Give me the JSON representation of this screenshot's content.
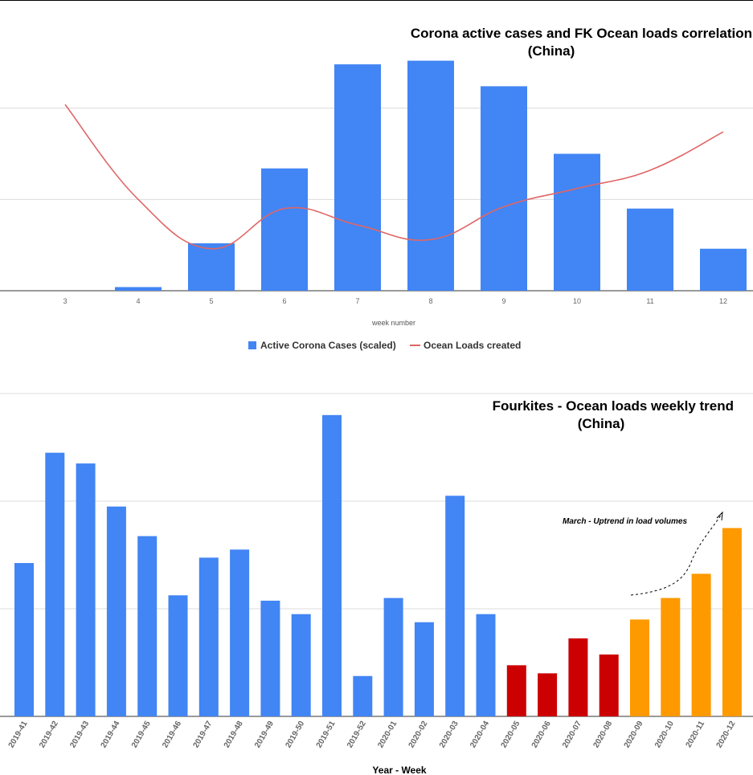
{
  "chart_data": [
    {
      "type": "bar",
      "title": "Corona active cases and FK Ocean loads correlation",
      "subtitle": "(China)",
      "xlabel": "week number",
      "categories": [
        "3",
        "4",
        "5",
        "6",
        "7",
        "8",
        "9",
        "10",
        "11",
        "12"
      ],
      "series": [
        {
          "name": "Active Corona Cases (scaled)",
          "type": "bar",
          "color": "#4285f4",
          "values": [
            0,
            2,
            26,
            67,
            124,
            126,
            112,
            75,
            45,
            23
          ]
        },
        {
          "name": "Ocean Loads created",
          "type": "line",
          "color": "#e06666",
          "values": [
            102,
            50,
            23,
            45,
            36,
            28,
            46,
            56,
            66,
            87
          ]
        }
      ],
      "ylim": [
        0,
        150
      ],
      "grid": true,
      "legend": "bottom"
    },
    {
      "type": "bar",
      "title": "Fourkites - Ocean loads weekly trend",
      "subtitle": "(China)",
      "xlabel": "Year - Week",
      "categories": [
        "2019-41",
        "2019-42",
        "2019-43",
        "2019-44",
        "2019-45",
        "2019-46",
        "2019-47",
        "2019-48",
        "2019-49",
        "2019-50",
        "2019-51",
        "2019-52",
        "2020-01",
        "2020-02",
        "2020-03",
        "2020-04",
        "2020-05",
        "2020-06",
        "2020-07",
        "2020-08",
        "2020-09",
        "2020-10",
        "2020-11",
        "2020-12"
      ],
      "values": [
        57,
        98,
        94,
        78,
        67,
        45,
        59,
        62,
        43,
        38,
        112,
        15,
        44,
        35,
        82,
        38,
        19,
        16,
        29,
        23,
        36,
        44,
        53,
        70
      ],
      "colors": [
        "#4285f4",
        "#4285f4",
        "#4285f4",
        "#4285f4",
        "#4285f4",
        "#4285f4",
        "#4285f4",
        "#4285f4",
        "#4285f4",
        "#4285f4",
        "#4285f4",
        "#4285f4",
        "#4285f4",
        "#4285f4",
        "#4285f4",
        "#4285f4",
        "#cc0000",
        "#cc0000",
        "#cc0000",
        "#cc0000",
        "#ff9900",
        "#ff9900",
        "#ff9900",
        "#ff9900"
      ],
      "annotation": "March - Uptrend in load volumes",
      "ylim": [
        0,
        120
      ],
      "grid": true,
      "legend": "none"
    }
  ]
}
